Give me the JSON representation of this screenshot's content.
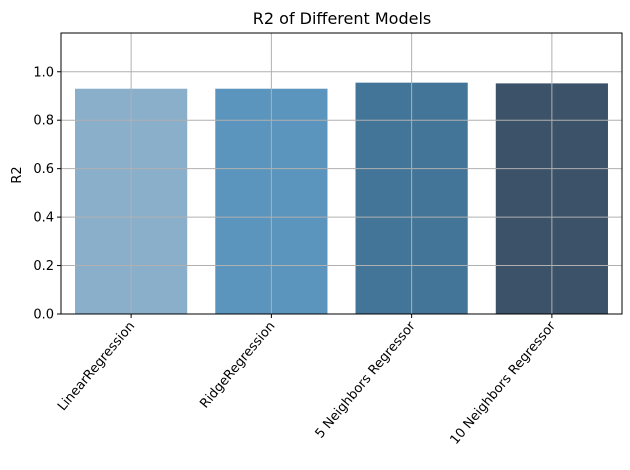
{
  "chart_data": {
    "type": "bar",
    "title": "R2 of Different Models",
    "xlabel": "",
    "ylabel": "R2",
    "categories": [
      "LinearRegression",
      "RidgeRegression",
      "5 Neighbors Regressor",
      "10 Neighbors Regressor"
    ],
    "values": [
      0.93,
      0.93,
      0.955,
      0.952
    ],
    "colors": [
      "#8aafcb",
      "#5b94bc",
      "#437598",
      "#3b5269"
    ],
    "ylim": [
      0,
      1.16
    ],
    "yticks": [
      0.0,
      0.2,
      0.4,
      0.6,
      0.8,
      1.0
    ],
    "ytick_labels": [
      "0.0",
      "0.2",
      "0.4",
      "0.6",
      "0.8",
      "1.0"
    ],
    "grid": true,
    "xtick_rotation": -50
  }
}
